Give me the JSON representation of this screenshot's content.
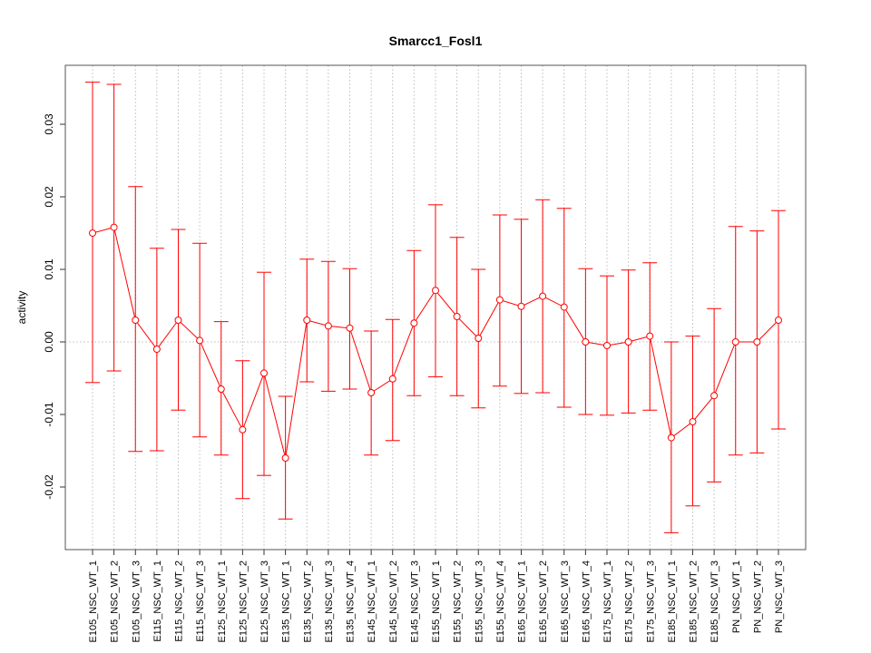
{
  "chart_data": {
    "type": "line",
    "title": "Smarcc1_Fosl1",
    "xlabel": "",
    "ylabel": "activity",
    "ylim": [
      -0.029,
      0.038
    ],
    "yticks": [
      -0.02,
      -0.01,
      0.0,
      0.01,
      0.02,
      0.03
    ],
    "ytick_labels": [
      "-0.02",
      "-0.01",
      "0.00",
      "0.01",
      "0.02",
      "0.03"
    ],
    "grid": "vertical dotted at categories, horizontal dotted at 0",
    "color": "#ff0000",
    "categories": [
      "E105_NSC_WT_1",
      "E105_NSC_WT_2",
      "E105_NSC_WT_3",
      "E115_NSC_WT_1",
      "E115_NSC_WT_2",
      "E115_NSC_WT_3",
      "E125_NSC_WT_1",
      "E125_NSC_WT_2",
      "E125_NSC_WT_3",
      "E135_NSC_WT_1",
      "E135_NSC_WT_2",
      "E135_NSC_WT_3",
      "E135_NSC_WT_4",
      "E145_NSC_WT_1",
      "E145_NSC_WT_2",
      "E145_NSC_WT_3",
      "E155_NSC_WT_1",
      "E155_NSC_WT_2",
      "E155_NSC_WT_3",
      "E155_NSC_WT_4",
      "E165_NSC_WT_1",
      "E165_NSC_WT_2",
      "E165_NSC_WT_3",
      "E165_NSC_WT_4",
      "E175_NSC_WT_1",
      "E175_NSC_WT_2",
      "E175_NSC_WT_3",
      "E185_NSC_WT_1",
      "E185_NSC_WT_2",
      "E185_NSC_WT_3",
      "PN_NSC_WT_1",
      "PN_NSC_WT_2",
      "PN_NSC_WT_3"
    ],
    "values": [
      0.015,
      0.0158,
      0.003,
      -0.001,
      0.003,
      0.0002,
      -0.0065,
      -0.0121,
      -0.0043,
      -0.016,
      0.003,
      0.0022,
      0.0019,
      -0.007,
      -0.0051,
      0.0026,
      0.0071,
      0.0035,
      0.0005,
      0.0058,
      0.0049,
      0.0063,
      0.0048,
      0.0,
      -0.0005,
      0.0,
      0.0008,
      -0.0132,
      -0.011,
      -0.0074,
      0.0,
      0.0,
      0.003
    ],
    "upper": [
      0.0358,
      0.0355,
      0.0214,
      0.0129,
      0.0155,
      0.0136,
      0.0028,
      -0.0026,
      0.0096,
      -0.0075,
      0.0114,
      0.0111,
      0.0101,
      0.0015,
      0.0031,
      0.0126,
      0.0189,
      0.0144,
      0.01,
      0.0175,
      0.0169,
      0.0196,
      0.0184,
      0.0101,
      0.0091,
      0.0099,
      0.0109,
      0.0,
      0.0008,
      0.0046,
      0.0159,
      0.0153,
      0.0181
    ],
    "lower": [
      -0.0056,
      -0.004,
      -0.0151,
      -0.015,
      -0.0094,
      -0.0131,
      -0.0156,
      -0.0216,
      -0.0184,
      -0.0244,
      -0.0055,
      -0.0068,
      -0.0065,
      -0.0156,
      -0.0136,
      -0.0074,
      -0.0048,
      -0.0074,
      -0.0091,
      -0.0061,
      -0.0071,
      -0.007,
      -0.009,
      -0.01,
      -0.0101,
      -0.0098,
      -0.0094,
      -0.0263,
      -0.0226,
      -0.0193,
      -0.0156,
      -0.0153,
      -0.012
    ]
  }
}
